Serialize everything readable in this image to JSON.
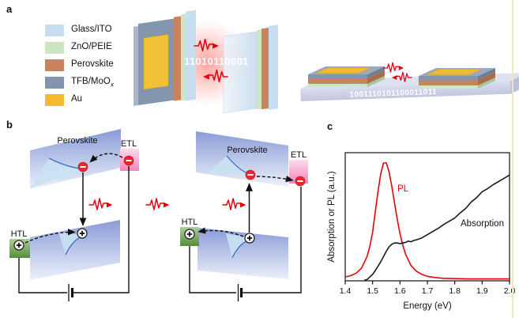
{
  "figure": {
    "panel_a_label": "a",
    "panel_b_label": "b",
    "panel_c_label": "c"
  },
  "legend": {
    "items": [
      {
        "label": "Glass/ITO",
        "sub": "",
        "color": "#c7ddf0"
      },
      {
        "label": "ZnO/PEIE",
        "sub": "",
        "color": "#cde5c2"
      },
      {
        "label": "Perovskite",
        "sub": "",
        "color": "#c9845d"
      },
      {
        "label": "TFB/MoO",
        "sub": "x",
        "color": "#8294ae"
      },
      {
        "label": "Au",
        "sub": "",
        "color": "#f2ba2f"
      }
    ]
  },
  "panel_a": {
    "binary_left": "11010110001",
    "binary_right": "1001110101100011011"
  },
  "panel_b": {
    "left": {
      "perovskite_label": "Perovskite",
      "etl_label": "ETL",
      "htl_label": "HTL"
    },
    "right": {
      "perovskite_label": "Perovskite",
      "etl_label": "ETL",
      "htl_label": "HTL"
    }
  },
  "chart_data": {
    "type": "line",
    "title": "",
    "xlabel": "Energy (eV)",
    "ylabel": "Absorption or PL (a.u.)",
    "xlim": [
      1.4,
      2.0
    ],
    "ylim": [
      0,
      1
    ],
    "x_ticks": [
      "1.4",
      "1.5",
      "1.6",
      "1.7",
      "1.8",
      "1.9",
      "2.0"
    ],
    "grid": false,
    "legend_position": "in-plot-annotations",
    "series": [
      {
        "name": "PL",
        "color": "#e8000d",
        "x": [
          1.4,
          1.42,
          1.44,
          1.46,
          1.48,
          1.49,
          1.5,
          1.51,
          1.52,
          1.53,
          1.54,
          1.55,
          1.56,
          1.57,
          1.58,
          1.59,
          1.6,
          1.61,
          1.62,
          1.64,
          1.66,
          1.68,
          1.7,
          1.73,
          1.76,
          1.8,
          1.85,
          1.9,
          1.95,
          2.0
        ],
        "y": [
          0.03,
          0.04,
          0.06,
          0.1,
          0.19,
          0.27,
          0.38,
          0.54,
          0.7,
          0.84,
          0.92,
          0.92,
          0.85,
          0.74,
          0.61,
          0.48,
          0.37,
          0.28,
          0.21,
          0.12,
          0.075,
          0.05,
          0.035,
          0.025,
          0.02,
          0.017,
          0.015,
          0.015,
          0.015,
          0.015
        ]
      },
      {
        "name": "Absorption",
        "color": "#1a1a1a",
        "x": [
          1.47,
          1.48,
          1.49,
          1.5,
          1.51,
          1.52,
          1.53,
          1.54,
          1.55,
          1.56,
          1.57,
          1.58,
          1.59,
          1.6,
          1.61,
          1.62,
          1.63,
          1.64,
          1.65,
          1.66,
          1.68,
          1.7,
          1.72,
          1.74,
          1.76,
          1.78,
          1.8,
          1.82,
          1.84,
          1.86,
          1.88,
          1.9,
          1.92,
          1.94,
          1.96,
          1.98,
          2.0
        ],
        "y": [
          0.005,
          0.01,
          0.03,
          0.05,
          0.08,
          0.115,
          0.15,
          0.19,
          0.23,
          0.265,
          0.285,
          0.295,
          0.295,
          0.29,
          0.295,
          0.3,
          0.31,
          0.305,
          0.315,
          0.32,
          0.335,
          0.36,
          0.385,
          0.41,
          0.44,
          0.465,
          0.49,
          0.53,
          0.565,
          0.615,
          0.65,
          0.695,
          0.72,
          0.75,
          0.775,
          0.8,
          0.825
        ]
      }
    ]
  },
  "colors": {
    "pl_red": "#e8000d",
    "absorption_black": "#1a1a1a",
    "photon_red": "#e8000d",
    "glow_red": "#ff463c",
    "band_blue_top": "#8a9cd6",
    "band_blue_bottom": "#ecf0fb",
    "band_wedge_blue": "#c9e2f2",
    "band_curve_blue": "#3f6fc4",
    "etl_pink": "#f583bc",
    "htl_green": "#558d3b",
    "electron_red": "#e8282c",
    "right_margin_line": "#ece8c0"
  }
}
